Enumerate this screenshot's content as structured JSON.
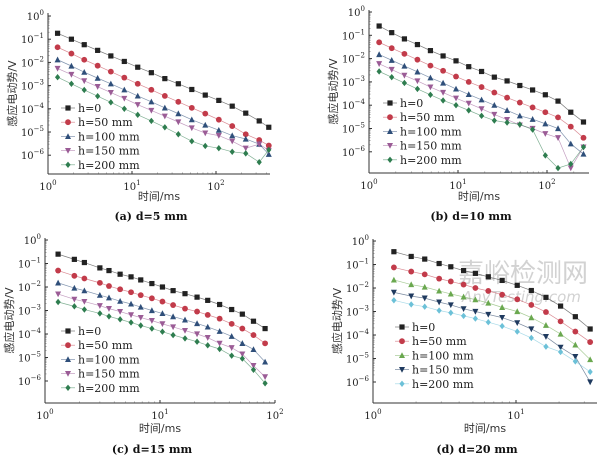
{
  "watermark": {
    "cn": "嘉峪检测网",
    "en": "AnyTesting.com"
  },
  "chart_data": [
    {
      "type": "line",
      "title": "(a) d=5 mm",
      "xlabel": "时间/ms",
      "ylabel": "感应电动势/V",
      "xscale": "log",
      "yscale": "log",
      "xlim": [
        1,
        435
      ],
      "ylim": [
        1.5e-07,
        1
      ],
      "xticks": [
        "10^0",
        "10^1",
        "10^2"
      ],
      "yticks": [
        "10^0",
        "10^-1",
        "10^-2",
        "10^-3",
        "10^-4",
        "10^-5",
        "10^-6"
      ],
      "legend": "lower-left",
      "x": [
        1.3,
        1.9,
        2.7,
        3.9,
        5.6,
        8.1,
        11.7,
        17,
        24.6,
        35.6,
        51.5,
        74.5,
        108,
        156,
        226,
        327,
        425
      ],
      "series": [
        {
          "name": "h=0",
          "color": "#222222",
          "marker": "square",
          "values": [
            0.18,
            0.1,
            0.058,
            0.033,
            0.019,
            0.011,
            0.0062,
            0.0036,
            0.002,
            0.0012,
            0.00068,
            0.00039,
            0.00023,
            0.00013,
            6.5e-05,
            3e-05,
            1.6e-05
          ]
        },
        {
          "name": "h=50 mm",
          "color": "#c23b4a",
          "marker": "circle",
          "values": [
            0.045,
            0.024,
            0.013,
            0.0072,
            0.004,
            0.0022,
            0.0012,
            0.00066,
            0.00036,
            0.0002,
            0.00011,
            6.2e-05,
            3.4e-05,
            1.8e-05,
            8e-06,
            4.5e-06,
            2.6e-06
          ]
        },
        {
          "name": "h=100 mm",
          "color": "#2f4f7a",
          "marker": "triangle-up",
          "values": [
            0.013,
            0.007,
            0.0038,
            0.0021,
            0.0012,
            0.00066,
            0.00036,
            0.0002,
            0.00011,
            6.2e-05,
            3.4e-05,
            2e-05,
            1.2e-05,
            7e-06,
            5e-06,
            3e-06,
            1.1e-06
          ]
        },
        {
          "name": "h=150 mm",
          "color": "#9b5c96",
          "marker": "triangle-down",
          "values": [
            0.0055,
            0.003,
            0.0016,
            0.0009,
            0.0005,
            0.00028,
            0.00015,
            8.5e-05,
            4.8e-05,
            2.7e-05,
            1.5e-05,
            9e-06,
            7e-06,
            4e-06,
            2e-06,
            3e-06,
            1.6e-06
          ]
        },
        {
          "name": "h=200 mm",
          "color": "#2e7d4f",
          "marker": "diamond",
          "values": [
            0.0023,
            0.0012,
            0.00065,
            0.00035,
            0.00019,
            0.0001,
            5.5e-05,
            3e-05,
            1.6e-05,
            8e-06,
            4e-06,
            2.5e-06,
            2e-06,
            1.4e-06,
            1.2e-06,
            5e-07,
            1.7e-06
          ]
        }
      ]
    },
    {
      "type": "line",
      "title": "(b) d=10 mm",
      "xlabel": "时间/ms",
      "ylabel": "感应电动势/V",
      "xscale": "log",
      "yscale": "log",
      "xlim": [
        1,
        260
      ],
      "ylim": [
        1.5e-07,
        1
      ],
      "xticks": [
        "10^0",
        "10^1",
        "10^2"
      ],
      "yticks": [
        "10^0",
        "10^-1",
        "10^-2",
        "10^-3",
        "10^-4",
        "10^-5",
        "10^-6"
      ],
      "legend": "lower-left",
      "x": [
        1.3,
        1.8,
        2.5,
        3.5,
        4.9,
        6.8,
        9.5,
        13.2,
        18.4,
        25.6,
        35.6,
        49.5,
        68.9,
        95.8,
        133,
        185,
        257
      ],
      "series": [
        {
          "name": "h=0",
          "color": "#222222",
          "marker": "square",
          "values": [
            0.25,
            0.13,
            0.07,
            0.04,
            0.022,
            0.013,
            0.008,
            0.0045,
            0.0028,
            0.0016,
            0.0011,
            0.0007,
            0.00045,
            0.00028,
            0.00015,
            5e-05,
            1.9e-05
          ]
        },
        {
          "name": "h=50 mm",
          "color": "#c23b4a",
          "marker": "circle",
          "values": [
            0.05,
            0.028,
            0.016,
            0.009,
            0.005,
            0.003,
            0.0017,
            0.001,
            0.0006,
            0.00035,
            0.00021,
            0.00013,
            8e-05,
            5e-05,
            3e-05,
            1.2e-05,
            4e-06
          ]
        },
        {
          "name": "h=100 mm",
          "color": "#2f4f7a",
          "marker": "triangle-up",
          "values": [
            0.015,
            0.0085,
            0.0048,
            0.0027,
            0.0015,
            0.0009,
            0.0005,
            0.00029,
            0.00017,
            0.0001,
            6e-05,
            3.5e-05,
            2.5e-05,
            1.6e-05,
            1e-05,
            2.2e-06,
            8e-07
          ]
        },
        {
          "name": "h=150 mm",
          "color": "#9b5c96",
          "marker": "triangle-down",
          "values": [
            0.006,
            0.0034,
            0.0019,
            0.0011,
            0.0006,
            0.00035,
            0.0002,
            0.00012,
            7e-05,
            4e-05,
            2.4e-05,
            1.4e-05,
            1e-05,
            6e-06,
            4e-06,
            2e-07,
            1.6e-06
          ]
        },
        {
          "name": "h=200 mm",
          "color": "#2e7d4f",
          "marker": "diamond",
          "values": [
            0.0028,
            0.0016,
            0.0009,
            0.0005,
            0.00028,
            0.00016,
            0.0001,
            6e-05,
            3.5e-05,
            2.2e-05,
            1.8e-05,
            1.5e-05,
            9e-06,
            7e-07,
            2e-07,
            3e-07,
            1.6e-06
          ]
        }
      ]
    },
    {
      "type": "line",
      "title": "(c) d=15 mm",
      "xlabel": "时间/ms",
      "ylabel": "感应电动势/V",
      "xscale": "log",
      "yscale": "log",
      "xlim": [
        1,
        100
      ],
      "ylim": [
        1.5e-07,
        1
      ],
      "xticks": [
        "10^0",
        "10^1",
        "10^2"
      ],
      "yticks": [
        "10^0",
        "10^-1",
        "10^-2",
        "10^-3",
        "10^-4",
        "10^-5",
        "10^-6"
      ],
      "legend": "lower-left",
      "x": [
        1.3,
        1.8,
        2.2,
        3,
        3.6,
        4.5,
        5.6,
        6.8,
        8.5,
        10.5,
        13,
        16.5,
        21,
        26,
        33,
        42,
        52,
        65,
        82
      ],
      "series": [
        {
          "name": "h=0",
          "color": "#222222",
          "marker": "square",
          "values": [
            0.25,
            0.15,
            0.11,
            0.065,
            0.05,
            0.035,
            0.027,
            0.02,
            0.014,
            0.01,
            0.007,
            0.0052,
            0.0037,
            0.0027,
            0.0018,
            0.0011,
            0.0007,
            0.00035,
            0.00017
          ]
        },
        {
          "name": "h=50 mm",
          "color": "#c23b4a",
          "marker": "circle",
          "values": [
            0.05,
            0.03,
            0.023,
            0.015,
            0.011,
            0.008,
            0.006,
            0.0045,
            0.0033,
            0.0024,
            0.0017,
            0.0012,
            0.0009,
            0.00065,
            0.00045,
            0.00027,
            0.00017,
            9e-05,
            4e-05
          ]
        },
        {
          "name": "h=100 mm",
          "color": "#2f4f7a",
          "marker": "triangle-up",
          "values": [
            0.015,
            0.009,
            0.007,
            0.0045,
            0.0035,
            0.0025,
            0.0019,
            0.0014,
            0.001,
            0.00075,
            0.00055,
            0.0004,
            0.00028,
            0.0002,
            0.00013,
            8e-05,
            4e-05,
            2.2e-05,
            6.5e-06
          ]
        },
        {
          "name": "h=150 mm",
          "color": "#9b5c96",
          "marker": "triangle-down",
          "values": [
            0.005,
            0.003,
            0.0024,
            0.0016,
            0.0012,
            0.0009,
            0.00065,
            0.0005,
            0.00037,
            0.00027,
            0.0002,
            0.00014,
            0.0001,
            7e-05,
            4e-05,
            2.6e-05,
            1.4e-05,
            4.5e-06,
            1.5e-06
          ]
        },
        {
          "name": "h=200 mm",
          "color": "#2e7d4f",
          "marker": "diamond",
          "values": [
            0.0023,
            0.0015,
            0.0011,
            0.00075,
            0.00056,
            0.00042,
            0.00031,
            0.00023,
            0.00017,
            0.000125,
            9e-05,
            6.5e-05,
            4.7e-05,
            3.3e-05,
            2.3e-05,
            1.2e-05,
            9e-06,
            3e-06,
            8e-07
          ]
        }
      ]
    },
    {
      "type": "line",
      "title": "(d) d=20 mm",
      "xlabel": "时间/ms",
      "ylabel": "感应电动势/V",
      "xscale": "log",
      "yscale": "log",
      "xlim": [
        1,
        35
      ],
      "ylim": [
        1.5e-07,
        1
      ],
      "xticks": [
        "10^0",
        "10^1"
      ],
      "yticks": [
        "10^0",
        "10^-1",
        "10^-2",
        "10^-3",
        "10^-4",
        "10^-5",
        "10^-6"
      ],
      "legend": "lower-left",
      "x": [
        1.4,
        1.85,
        2.3,
        2.9,
        3.5,
        4.3,
        5.2,
        6.4,
        8,
        10.2,
        12.8,
        16.2,
        20.5,
        26,
        33
      ],
      "series": [
        {
          "name": "h=0",
          "color": "#222222",
          "marker": "square",
          "values": [
            0.35,
            0.22,
            0.17,
            0.11,
            0.08,
            0.055,
            0.042,
            0.03,
            0.021,
            0.013,
            0.0078,
            0.004,
            0.0017,
            0.0006,
            0.00018
          ]
        },
        {
          "name": "h=50 mm",
          "color": "#c23b4a",
          "marker": "circle",
          "values": [
            0.075,
            0.05,
            0.038,
            0.025,
            0.019,
            0.014,
            0.01,
            0.0075,
            0.0052,
            0.0033,
            0.0019,
            0.00095,
            0.00038,
            0.00014,
            5e-05
          ]
        },
        {
          "name": "h=100 mm",
          "color": "#6aa84f",
          "marker": "triangle-up",
          "values": [
            0.022,
            0.014,
            0.011,
            0.0075,
            0.0056,
            0.0042,
            0.0032,
            0.0023,
            0.0015,
            0.001,
            0.00055,
            0.00026,
            0.00011,
            3.8e-05,
            9e-06
          ]
        },
        {
          "name": "h=150 mm",
          "color": "#1f3a5f",
          "marker": "triangle-down",
          "values": [
            0.0065,
            0.0045,
            0.0037,
            0.0025,
            0.0019,
            0.0013,
            0.001,
            0.00075,
            0.00055,
            0.00033,
            0.00018,
            8.5e-05,
            3e-05,
            1.2e-05,
            1e-06
          ]
        },
        {
          "name": "h=200 mm",
          "color": "#6cc1d8",
          "marker": "diamond",
          "values": [
            0.003,
            0.002,
            0.0016,
            0.0011,
            0.00088,
            0.00065,
            0.0005,
            0.00035,
            0.00024,
            0.00014,
            7.5e-05,
            3.2e-05,
            1.9e-05,
            7.5e-06,
            2.7e-06
          ]
        }
      ]
    }
  ]
}
